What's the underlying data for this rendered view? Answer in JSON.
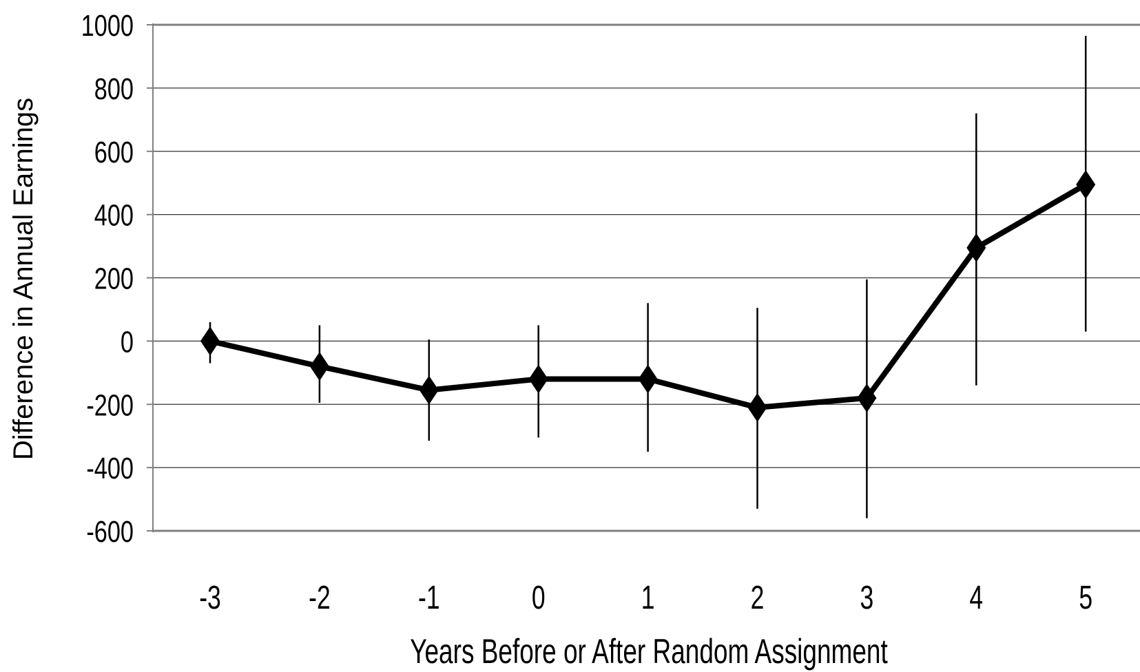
{
  "chart_data": {
    "type": "line",
    "title": "",
    "xlabel": "Years Before or After Random Assignment",
    "ylabel": "Difference in Annual Earnings",
    "ylim": [
      -600,
      1000
    ],
    "yticks": [
      1000,
      800,
      600,
      400,
      200,
      0,
      -200,
      -400,
      -600
    ],
    "y_tick_labels": [
      "1000",
      "800",
      "600",
      "400",
      "200",
      "0",
      "-200",
      "-400",
      "-600"
    ],
    "categories": [
      "-3",
      "-2",
      "-1",
      "0",
      "1",
      "2",
      "3",
      "4",
      "5"
    ],
    "series": [
      {
        "values": [
          0,
          -80,
          -155,
          -120,
          -120,
          -210,
          -180,
          295,
          495
        ],
        "lower": [
          -70,
          -195,
          -315,
          -305,
          -350,
          -530,
          -560,
          -140,
          30
        ],
        "upper": [
          60,
          50,
          5,
          50,
          120,
          105,
          195,
          720,
          965
        ]
      }
    ],
    "grid": true,
    "legend": "none",
    "colors": {
      "line": "#000000",
      "grid": "#333333",
      "axis": "#808080"
    }
  }
}
